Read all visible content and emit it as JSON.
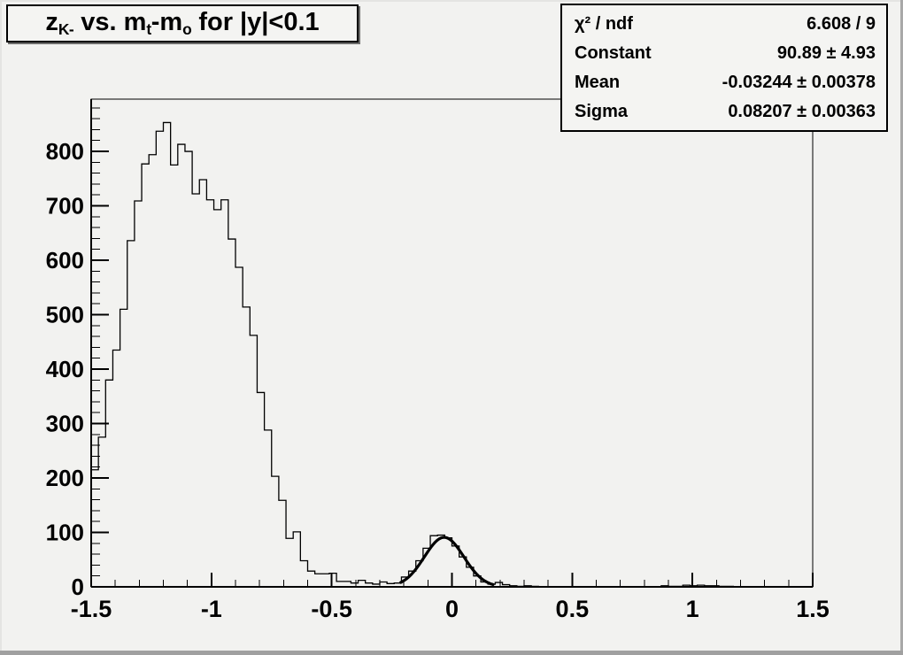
{
  "canvas": {
    "background": "#f2f2f0",
    "edge_dark": "#a0a0a0",
    "edge_light": "#e4e4e2",
    "line_color": "#000000"
  },
  "title": {
    "plain": "zK- vs. mt-mo for |y|<0.1",
    "segments": [
      {
        "text": "z"
      },
      {
        "text": "K-",
        "sub": true
      },
      {
        "text": " vs. m"
      },
      {
        "text": "t",
        "sub": true
      },
      {
        "text": "-m"
      },
      {
        "text": "o",
        "sub": true
      },
      {
        "text": " for |y|<0.1"
      }
    ]
  },
  "stats": {
    "rows": [
      {
        "label": "χ² / ndf",
        "value": "6.608 / 9"
      },
      {
        "label": "Constant",
        "value": "90.89 ± 4.93"
      },
      {
        "label": "Mean",
        "value": "-0.03244 ± 0.00378"
      },
      {
        "label": "Sigma",
        "value": "0.08207 ± 0.00363"
      }
    ]
  },
  "chart_data": {
    "type": "bar",
    "subtype": "step-histogram-with-gaussian-fit",
    "title": "zK- vs. mt-mo for |y|<0.1",
    "xlabel": "",
    "ylabel": "",
    "x_range": [
      -1.5,
      1.5
    ],
    "y_range": [
      0,
      896
    ],
    "grid": false,
    "bin_start": -1.5,
    "bin_width": 0.03,
    "values": [
      215,
      275,
      380,
      435,
      510,
      636,
      709,
      777,
      794,
      837,
      853,
      775,
      813,
      800,
      722,
      748,
      711,
      693,
      711,
      639,
      587,
      514,
      462,
      357,
      288,
      203,
      159,
      89,
      101,
      48,
      29,
      24,
      24,
      25,
      10,
      10,
      7,
      12,
      7,
      5,
      9,
      6,
      7,
      18,
      29,
      48,
      71,
      94,
      95,
      90,
      75,
      55,
      36,
      20,
      9,
      5,
      8,
      4,
      2,
      1,
      2,
      1,
      0,
      0,
      0,
      0,
      0,
      0,
      0,
      0,
      0,
      0,
      0,
      0,
      0,
      0,
      0,
      0,
      0,
      2,
      1,
      1,
      3,
      2,
      3,
      2,
      2,
      1,
      1,
      0,
      0,
      0,
      0,
      0,
      0,
      0,
      0,
      0,
      0,
      0
    ],
    "x_ticks": [
      -1.5,
      -1,
      -0.5,
      0,
      0.5,
      1,
      1.5
    ],
    "x_tick_labels": [
      "-1.5",
      "-1",
      "-0.5",
      "0",
      "0.5",
      "1",
      "1.5"
    ],
    "x_minor_step": 0.1,
    "y_ticks": [
      0,
      100,
      200,
      300,
      400,
      500,
      600,
      700,
      800
    ],
    "y_tick_labels": [
      "0",
      "100",
      "200",
      "300",
      "400",
      "500",
      "600",
      "700",
      "800"
    ],
    "y_minor_step": 20,
    "fit": {
      "type": "gaussian",
      "constant": 90.89,
      "mean": -0.03244,
      "sigma": 0.08207,
      "chi2": 6.608,
      "ndf": 9,
      "draw_range": [
        -0.213,
        0.171
      ]
    }
  }
}
